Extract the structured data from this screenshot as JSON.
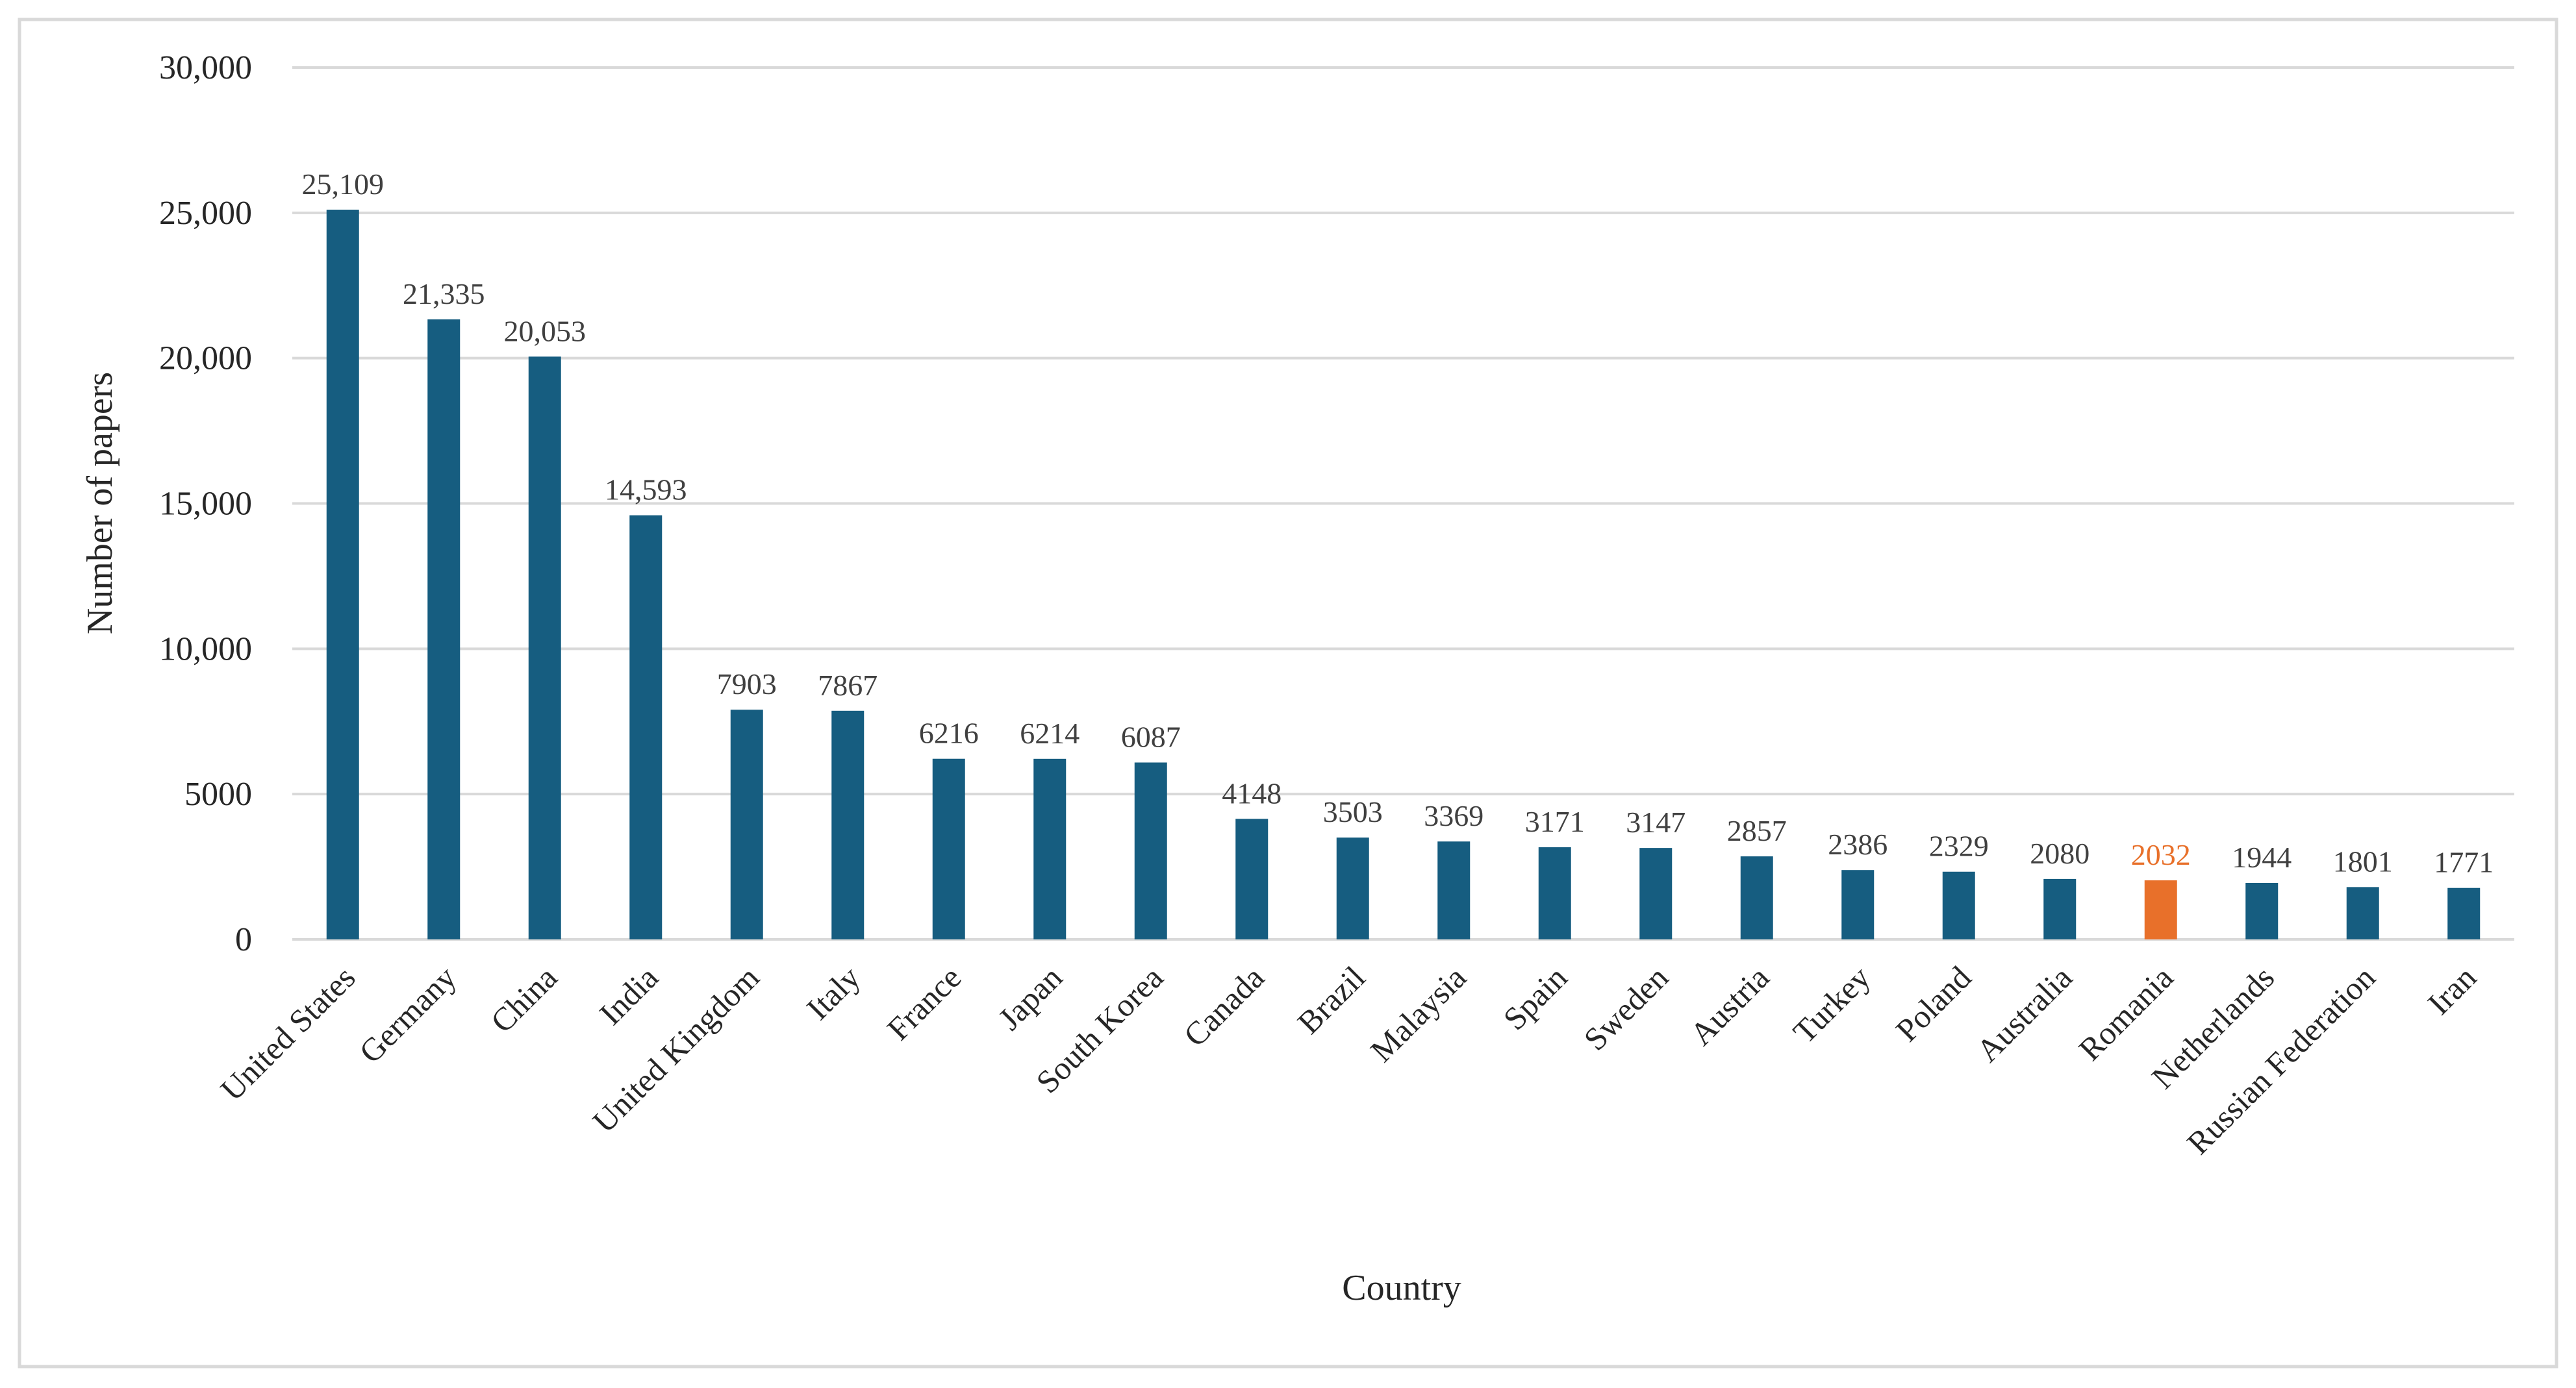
{
  "chart_data": {
    "type": "bar",
    "title": "",
    "xlabel": "Country",
    "ylabel": "Number of papers",
    "ylim": [
      0,
      30000
    ],
    "yticks": [
      0,
      5000,
      10000,
      15000,
      20000,
      25000,
      30000
    ],
    "ytick_labels": [
      "0",
      "5000",
      "10,000",
      "15,000",
      "20,000",
      "25,000",
      "30,000"
    ],
    "grid": true,
    "legend": "none",
    "categories": [
      "United States",
      "Germany",
      "China",
      "India",
      "United Kingdom",
      "Italy",
      "France",
      "Japan",
      "South Korea",
      "Canada",
      "Brazil",
      "Malaysia",
      "Spain",
      "Sweden",
      "Austria",
      "Turkey",
      "Poland",
      "Australia",
      "Romania",
      "Netherlands",
      "Russian Federation",
      "Iran"
    ],
    "values": [
      25109,
      21335,
      20053,
      14593,
      7903,
      7867,
      6216,
      6214,
      6087,
      4148,
      3503,
      3369,
      3171,
      3147,
      2857,
      2386,
      2329,
      2080,
      2032,
      1944,
      1801,
      1771
    ],
    "data_labels": [
      "25,109",
      "21,335",
      "20,053",
      "14,593",
      "7903",
      "7867",
      "6216",
      "6214",
      "6087",
      "4148",
      "3503",
      "3369",
      "3171",
      "3147",
      "2857",
      "2386",
      "2329",
      "2080",
      "2032",
      "1944",
      "1801",
      "1771"
    ],
    "highlight": "Romania",
    "colors": {
      "bar": "#165d80",
      "highlight": "#e8702a",
      "grid": "#d9d9d9",
      "label": "#404040"
    }
  }
}
